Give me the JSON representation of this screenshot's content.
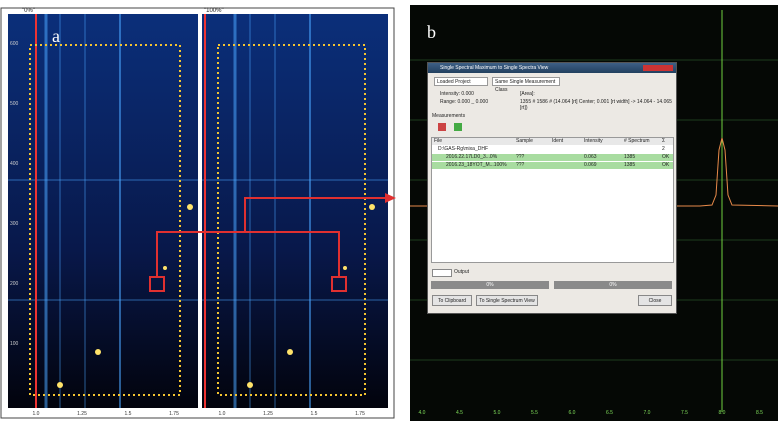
{
  "panel_a": {
    "label": "a",
    "left_title": "\"0%\"",
    "right_title": "\"100%\"",
    "left_x_labels": [
      "1.0",
      "1.25",
      "1.5",
      "1.75"
    ],
    "right_x_labels": [
      "1.0",
      "1.25",
      "1.5",
      "1.75"
    ],
    "left_y_labels": [
      "600",
      "500",
      "400",
      "300",
      "200",
      "100"
    ]
  },
  "panel_b": {
    "label": "b",
    "x_labels": [
      "4.0",
      "4.5",
      "5.0",
      "5.5",
      "6.0",
      "6.5",
      "7.0",
      "7.5",
      "8.0",
      "8.5"
    ],
    "window": {
      "title": "Single Spectral Maximum to Single Spectra View",
      "project": "Loaded Project",
      "class": "Same Single Measurement Class",
      "intensity": "Intensity: 0.000",
      "range": "Range: 0.000 _ 0.000",
      "area_label": "[Area]:",
      "area_value": "1355 # 1586 # (14.064 [rt] Center; 0.001 [rt width] -> 14.064 - 14.065 [rt])",
      "measurements": "Measurements",
      "headers": [
        "File",
        "Sample",
        "Ident",
        "Intensity",
        "# Spectrum",
        "Σ"
      ],
      "group_row": [
        "D:\\GAS-Rg\\mixa_DHF",
        "",
        "",
        "",
        "",
        "2"
      ],
      "rows": [
        [
          "2016.22.17LD0_3...0%",
          "???",
          "",
          "0.063",
          "1385",
          "OK"
        ],
        [
          "2016.23_18YOT_M...100%",
          "???",
          "",
          "0.069",
          "1385",
          "OK"
        ]
      ],
      "output": "Output",
      "progress": [
        "0%",
        "0%"
      ],
      "buttons": [
        "To Clipboard",
        "To Single Spectrum View",
        "Close"
      ]
    }
  }
}
